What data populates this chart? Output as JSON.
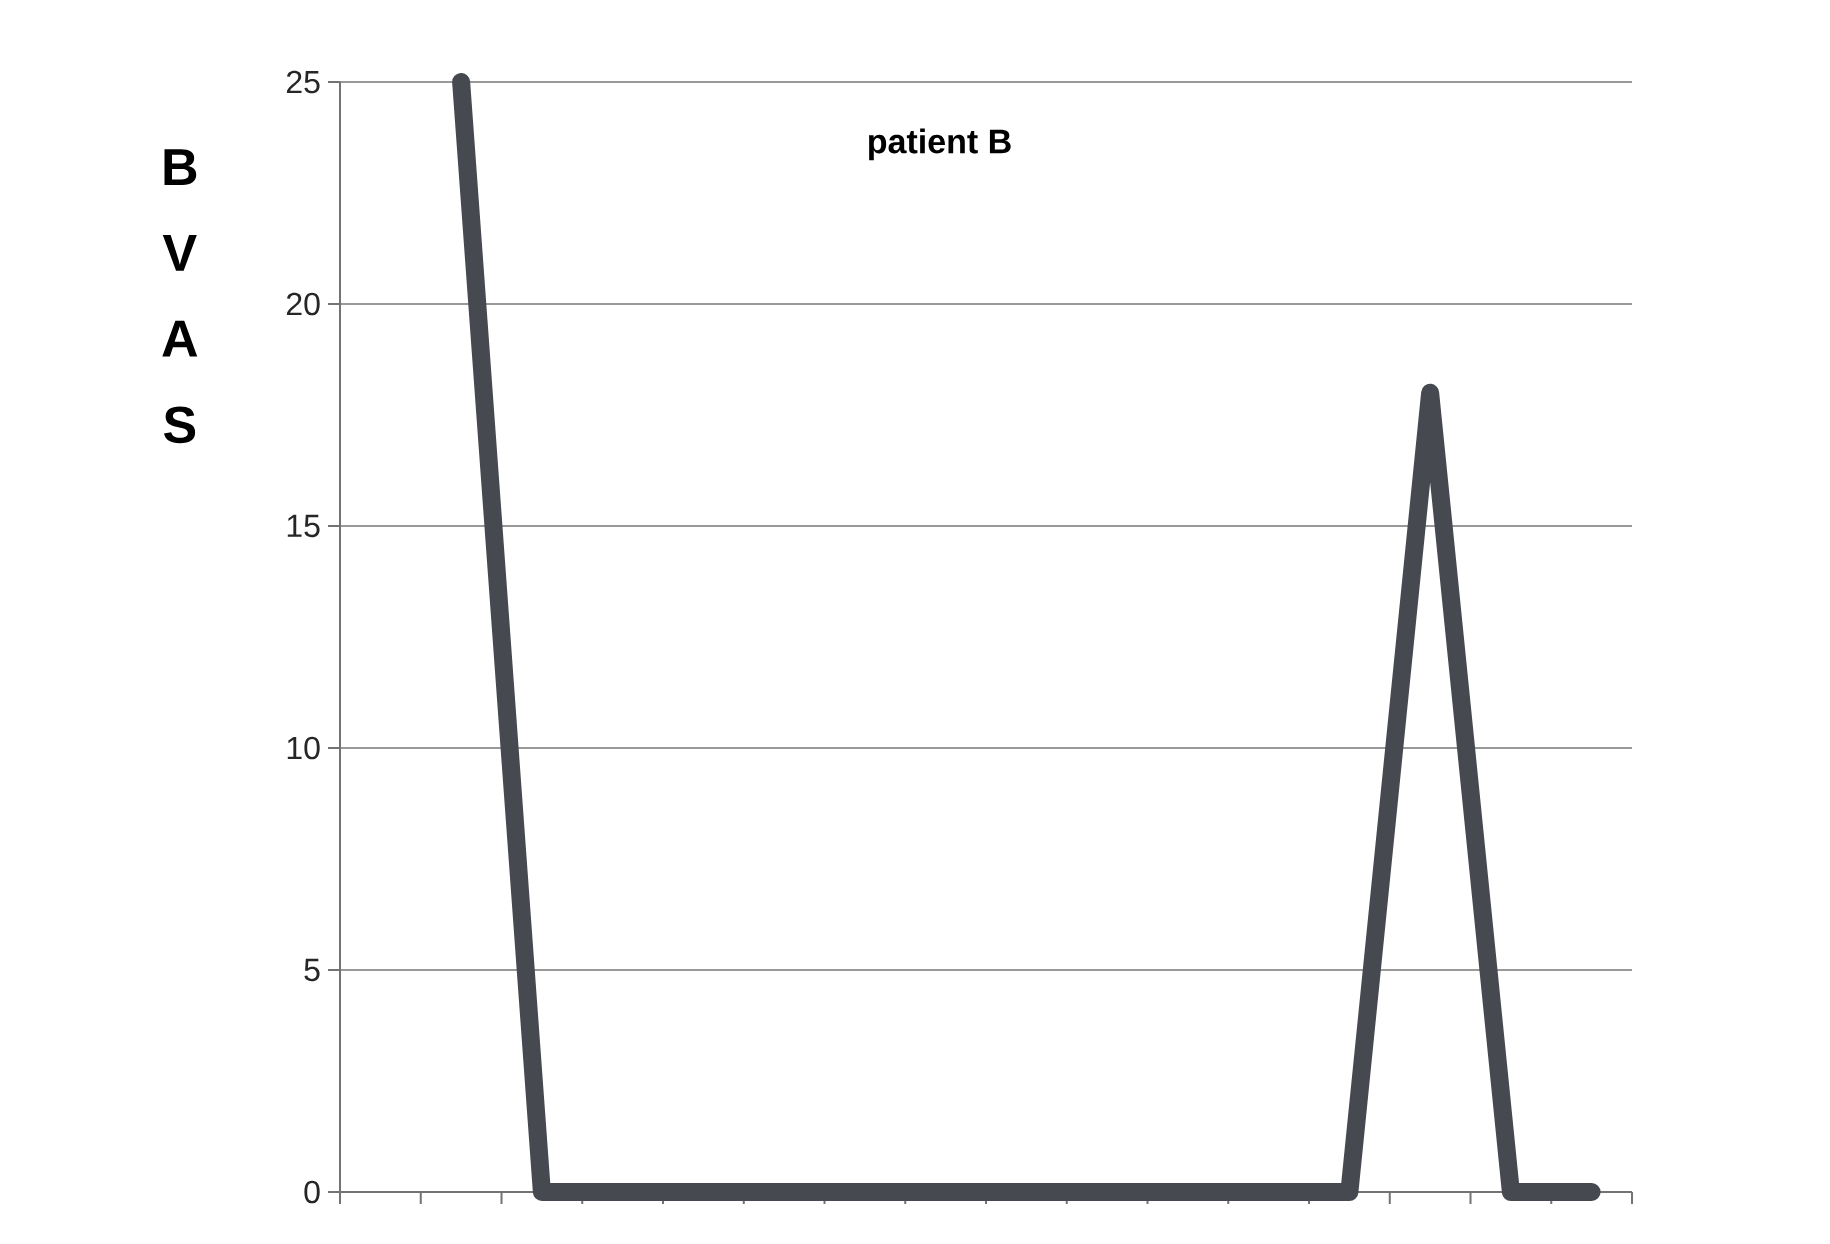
{
  "chart_data": {
    "type": "line",
    "title": "patient B",
    "ylabel": "BVAS",
    "categories": [
      null,
      null,
      null,
      null,
      null,
      null,
      null,
      null,
      null,
      null,
      null,
      null,
      null,
      null,
      null,
      null
    ],
    "series": [
      {
        "color": "#46494f",
        "values": [
          null,
          25,
          0,
          0,
          0,
          0,
          0,
          0,
          0,
          0,
          0,
          0,
          0,
          18,
          0,
          0
        ]
      }
    ],
    "ylim": [
      0,
      25
    ],
    "yticks": [
      0,
      5,
      10,
      15,
      20,
      25
    ],
    "grid": "y",
    "tick_labels": "y",
    "line_style": "solid",
    "marker": "none"
  }
}
